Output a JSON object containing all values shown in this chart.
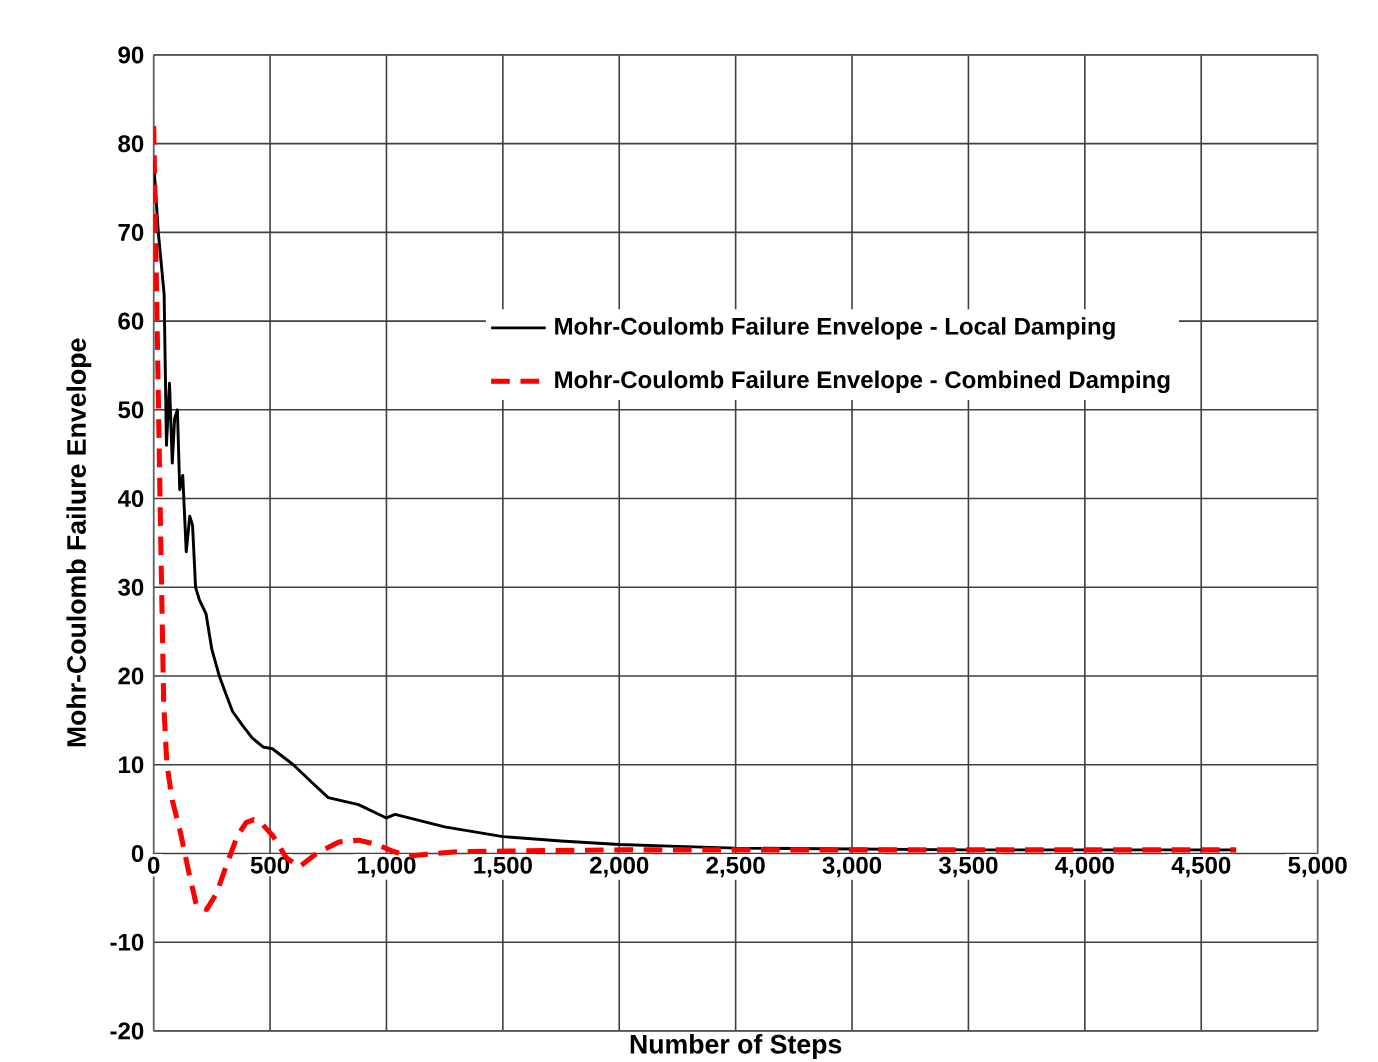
{
  "chart_data": {
    "type": "line",
    "xlabel": "Number of Steps",
    "ylabel": "Mohr-Coulomb Failure Envelope",
    "xlim": [
      0,
      5000
    ],
    "ylim": [
      -20,
      90
    ],
    "xticks": [
      0,
      500,
      {
        "value": 1000,
        "label": "1,000"
      },
      {
        "value": 1500,
        "label": "1,500"
      },
      {
        "value": 2000,
        "label": "2,000"
      },
      {
        "value": 2500,
        "label": "2,500"
      },
      {
        "value": 3000,
        "label": "3,000"
      },
      {
        "value": 3500,
        "label": "3,500"
      },
      {
        "value": 4000,
        "label": "4,000"
      },
      {
        "value": 4500,
        "label": "4,500"
      },
      {
        "value": 5000,
        "label": "5,000"
      }
    ],
    "yticks": [
      -20,
      -10,
      0,
      10,
      20,
      30,
      40,
      50,
      60,
      70,
      80,
      90
    ],
    "grid": true,
    "legend": "right",
    "marker": "none",
    "series": [
      {
        "name": "Mohr-Coulomb Failure Envelope - Local Damping",
        "color": "#000000",
        "line_style": "solid",
        "x": [
          0,
          20,
          45,
          55,
          68,
          80,
          90,
          102,
          112,
          125,
          140,
          155,
          167,
          180,
          196,
          225,
          250,
          282,
          310,
          339,
          380,
          424,
          470,
          510,
          600,
          680,
          750,
          880,
          1000,
          1037,
          1250,
          1500,
          1750,
          2000,
          2250,
          2500,
          3000,
          3500,
          4000,
          4650
        ],
        "values": [
          78,
          70,
          63,
          46,
          53,
          44,
          49,
          50,
          41,
          42.6,
          34,
          38,
          37,
          30,
          28.6,
          27,
          23,
          20,
          18,
          16,
          14.5,
          13,
          12,
          11.8,
          10,
          8,
          6.3,
          5.5,
          4,
          4.4,
          3,
          1.9,
          1.4,
          1.0,
          0.8,
          0.6,
          0.5,
          0.4,
          0.4,
          0.4
        ]
      },
      {
        "name": "Mohr-Coulomb Failure Envelope - Combined Damping",
        "color": "#ff0000",
        "line_style": "dashed",
        "x": [
          0,
          14,
          28,
          43,
          57,
          80,
          114,
          150,
          185,
          228,
          270,
          313,
          360,
          398,
          430,
          470,
          512,
          570,
          626,
          700,
          796,
          881,
          960,
          1023,
          1090,
          1300,
          1600,
          2000,
          2500,
          3000,
          3500,
          4000,
          4650
        ],
        "values": [
          82,
          61,
          39,
          17,
          10,
          6,
          2.5,
          -2,
          -6,
          -6.3,
          -4.5,
          -1.3,
          2,
          3.5,
          3.8,
          3.2,
          2,
          -0.5,
          -1.5,
          0,
          1.3,
          1.5,
          1,
          0.3,
          -0.3,
          0.2,
          0.3,
          0.4,
          0.4,
          0.4,
          0.4,
          0.4,
          0.4
        ]
      }
    ]
  }
}
